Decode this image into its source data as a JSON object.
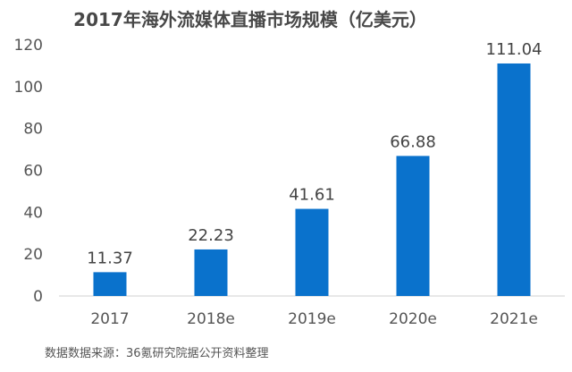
{
  "chart_data": {
    "type": "bar",
    "title": "2017年海外流媒体直播市场规模（亿美元）",
    "categories": [
      "2017",
      "2018e",
      "2019e",
      "2020e",
      "2021e"
    ],
    "values": [
      11.37,
      22.23,
      41.61,
      66.88,
      111.04
    ],
    "data_labels": [
      "11.37",
      "22.23",
      "41.61",
      "66.88",
      "111.04"
    ],
    "ylim": [
      0,
      120
    ],
    "yticks": [
      0,
      20,
      40,
      60,
      80,
      100,
      120
    ],
    "xlabel": "",
    "ylabel": "",
    "grid": false,
    "bar_color": "#0A72CC",
    "source": "数据数据来源：36氪研究院据公开资料整理"
  }
}
